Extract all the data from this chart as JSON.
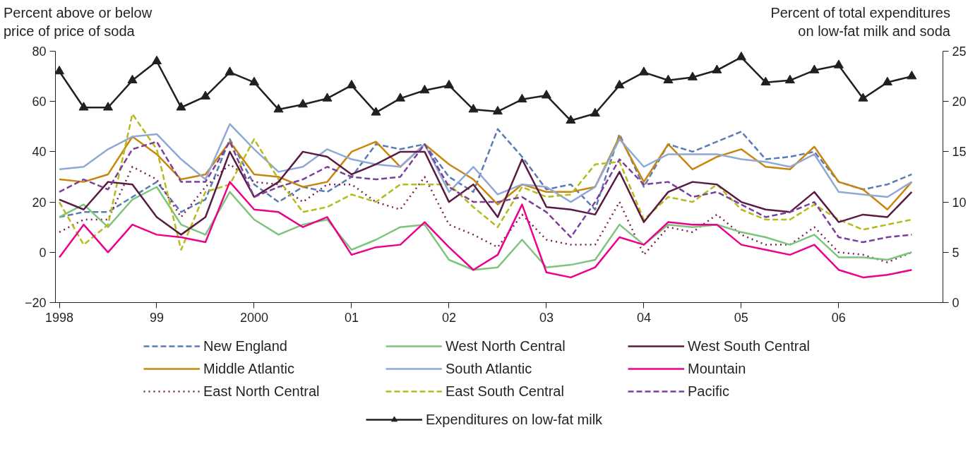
{
  "chart_data": {
    "type": "line",
    "ylabel": "Percent above or below\nprice of price of soda",
    "y2label": "Percent of total expenditures\non low-fat milk and soda",
    "x": [
      1998,
      1998.25,
      1998.5,
      1998.75,
      1999,
      1999.25,
      1999.5,
      1999.75,
      2000,
      2000.25,
      2000.5,
      2000.75,
      2001,
      2001.25,
      2001.5,
      2001.75,
      2002,
      2002.25,
      2002.5,
      2002.75,
      2003,
      2003.25,
      2003.5,
      2003.75,
      2004,
      2004.25,
      2004.5,
      2004.75,
      2005,
      2005.25,
      2005.5,
      2005.75,
      2006,
      2006.25,
      2006.5,
      2006.75
    ],
    "xlim": [
      1997.96,
      2007.07
    ],
    "xticks": [
      {
        "value": 1998,
        "label": "1998"
      },
      {
        "value": 1999,
        "label": "99"
      },
      {
        "value": 2000,
        "label": "2000"
      },
      {
        "value": 2001,
        "label": "01"
      },
      {
        "value": 2002,
        "label": "02"
      },
      {
        "value": 2003,
        "label": "03"
      },
      {
        "value": 2004,
        "label": "04"
      },
      {
        "value": 2005,
        "label": "05"
      },
      {
        "value": 2006,
        "label": "06"
      }
    ],
    "ylim": [
      -20,
      80
    ],
    "yticks": [
      -20,
      0,
      20,
      40,
      60,
      80
    ],
    "y2lim": [
      0,
      25
    ],
    "y2ticks": [
      0,
      5,
      10,
      15,
      20,
      25
    ],
    "grid": false,
    "legend": "bottom",
    "series": [
      {
        "name": "New England",
        "color": "#5b7bb5",
        "line_style": "dashed",
        "values": [
          14,
          16,
          16,
          22,
          28,
          16,
          21,
          45,
          27,
          20,
          26,
          24,
          30,
          43,
          41,
          43,
          30,
          24,
          49,
          38,
          25,
          27,
          17,
          47,
          26,
          43,
          40,
          44,
          48,
          37,
          38,
          40,
          28,
          25,
          27,
          31
        ]
      },
      {
        "name": "Middle Atlantic",
        "color": "#c8860e",
        "line_style": "solid",
        "values": [
          29,
          28,
          31,
          46,
          39,
          29,
          31,
          44,
          31,
          30,
          26,
          28,
          40,
          44,
          34,
          43,
          35,
          29,
          19,
          27,
          24,
          24,
          26,
          46,
          28,
          43,
          33,
          38,
          41,
          34,
          33,
          42,
          28,
          25,
          17,
          28
        ]
      },
      {
        "name": "East North Central",
        "color": "#7b1f5e",
        "line_style": "dotted",
        "values": [
          8,
          13,
          13,
          34,
          29,
          14,
          26,
          35,
          28,
          27,
          20,
          27,
          27,
          20,
          17,
          30,
          11,
          7,
          2,
          15,
          5,
          3,
          3,
          20,
          -1,
          10,
          8,
          15,
          7,
          3,
          3,
          10,
          0,
          -1,
          -4,
          0
        ]
      },
      {
        "name": "West North Central",
        "color": "#7dc47d",
        "line_style": "solid",
        "values": [
          14,
          19,
          10,
          21,
          26,
          11,
          7,
          24,
          13,
          7,
          11,
          13,
          1,
          5,
          10,
          11,
          -3,
          -7,
          -6,
          5,
          -6,
          -5,
          -3,
          11,
          3,
          11,
          10,
          11,
          8,
          6,
          3,
          7,
          -2,
          -2,
          -3,
          0
        ]
      },
      {
        "name": "South Atlantic",
        "color": "#8fa8d6",
        "line_style": "solid",
        "values": [
          33,
          34,
          41,
          46,
          47,
          37,
          29,
          51,
          41,
          32,
          34,
          41,
          37,
          35,
          34,
          43,
          24,
          34,
          23,
          27,
          26,
          20,
          26,
          45,
          34,
          39,
          39,
          39,
          37,
          36,
          34,
          39,
          24,
          23,
          22,
          28
        ]
      },
      {
        "name": "East South Central",
        "color": "#b5bb1a",
        "line_style": "dashed",
        "values": [
          20,
          3,
          11,
          55,
          41,
          1,
          24,
          27,
          45,
          29,
          16,
          18,
          23,
          20,
          27,
          27,
          27,
          18,
          10,
          26,
          22,
          23,
          35,
          36,
          13,
          22,
          20,
          27,
          17,
          13,
          13,
          19,
          13,
          9,
          11,
          13
        ]
      },
      {
        "name": "West South Central",
        "color": "#5a1a44",
        "line_style": "solid",
        "values": [
          21,
          17,
          28,
          27,
          14,
          7,
          14,
          40,
          22,
          28,
          40,
          38,
          31,
          35,
          40,
          40,
          20,
          27,
          14,
          37,
          18,
          17,
          15,
          32,
          12,
          24,
          28,
          27,
          20,
          17,
          16,
          24,
          12,
          15,
          14,
          24
        ]
      },
      {
        "name": "Mountain",
        "color": "#ec008c",
        "line_style": "solid",
        "values": [
          -2,
          11,
          0,
          11,
          7,
          6,
          4,
          28,
          17,
          16,
          10,
          14,
          -1,
          2,
          3,
          12,
          2,
          -7,
          -1,
          19,
          -8,
          -10,
          -6,
          6,
          3,
          12,
          11,
          11,
          3,
          1,
          -1,
          3,
          -7,
          -10,
          -9,
          -7
        ]
      },
      {
        "name": "Pacific",
        "color": "#7b3f9c",
        "line_style": "dashed",
        "values": [
          24,
          29,
          25,
          41,
          44,
          28,
          28,
          44,
          22,
          26,
          29,
          34,
          30,
          29,
          30,
          43,
          26,
          20,
          20,
          22,
          16,
          6,
          20,
          37,
          27,
          28,
          22,
          24,
          19,
          14,
          16,
          20,
          6,
          4,
          6,
          7
        ]
      },
      {
        "name": "Expenditures on low-fat milk",
        "color": "#231f20",
        "line_style": "solid",
        "marker": "triangle",
        "axis": "y2",
        "values": [
          23,
          19.4,
          19.4,
          22.1,
          24,
          19.4,
          20.5,
          22.9,
          21.9,
          19.2,
          19.7,
          20.3,
          21.6,
          18.9,
          20.3,
          21.1,
          21.6,
          19.2,
          19,
          20.2,
          20.6,
          18.1,
          18.8,
          21.6,
          22.9,
          22.1,
          22.4,
          23.1,
          24.4,
          21.9,
          22.1,
          23.1,
          23.6,
          20.3,
          21.9,
          22.5
        ]
      }
    ]
  }
}
